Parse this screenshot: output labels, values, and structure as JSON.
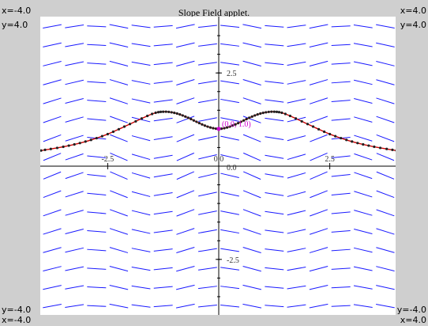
{
  "title": "Slope Field applet.",
  "corners": {
    "top_left_x": "x=-4.0",
    "top_left_y": "y=4.0",
    "top_right_x": "x=4.0",
    "top_right_y": "y=4.0",
    "bottom_left_y": "y=-4.0",
    "bottom_left_x": "x=-4.0",
    "bottom_right_y": "y=-4.0",
    "bottom_right_x": "x=4.0"
  },
  "colors": {
    "background": "#cfcfcf",
    "plot_background": "#ffffff",
    "slope_segments": "#1a1aff",
    "solution_curve": "#cc0000",
    "solution_points": "#202020",
    "initial_point": "#d000d0",
    "axes": "#000000"
  },
  "chart_data": {
    "type": "line",
    "title": "Slope Field applet.",
    "xlim": [
      -4.0,
      4.0
    ],
    "ylim": [
      -4.0,
      4.0
    ],
    "x_tick_labels": [
      "-2.5",
      "0.0",
      "2.5"
    ],
    "y_tick_labels": [
      "2.5",
      "0.0",
      "-2.5"
    ],
    "initial_point_label": "(0.0, 1.0)",
    "initial_point": [
      0.0,
      1.0
    ],
    "slope_field_grid": {
      "nx": 16,
      "ny": 16
    },
    "solution_curve": {
      "x": [
        -4.0,
        -3.5,
        -3.0,
        -2.5,
        -2.0,
        -1.5,
        -1.25,
        -1.0,
        -0.75,
        -0.5,
        -0.25,
        0.0,
        0.25,
        0.5,
        0.75,
        1.0,
        1.25,
        1.5,
        2.0,
        2.5,
        3.0,
        3.5,
        4.0
      ],
      "y": [
        0.42,
        0.52,
        0.66,
        0.86,
        1.13,
        1.4,
        1.46,
        1.43,
        1.33,
        1.19,
        1.06,
        1.0,
        1.06,
        1.19,
        1.33,
        1.43,
        1.46,
        1.4,
        1.13,
        0.86,
        0.66,
        0.52,
        0.42
      ]
    }
  }
}
